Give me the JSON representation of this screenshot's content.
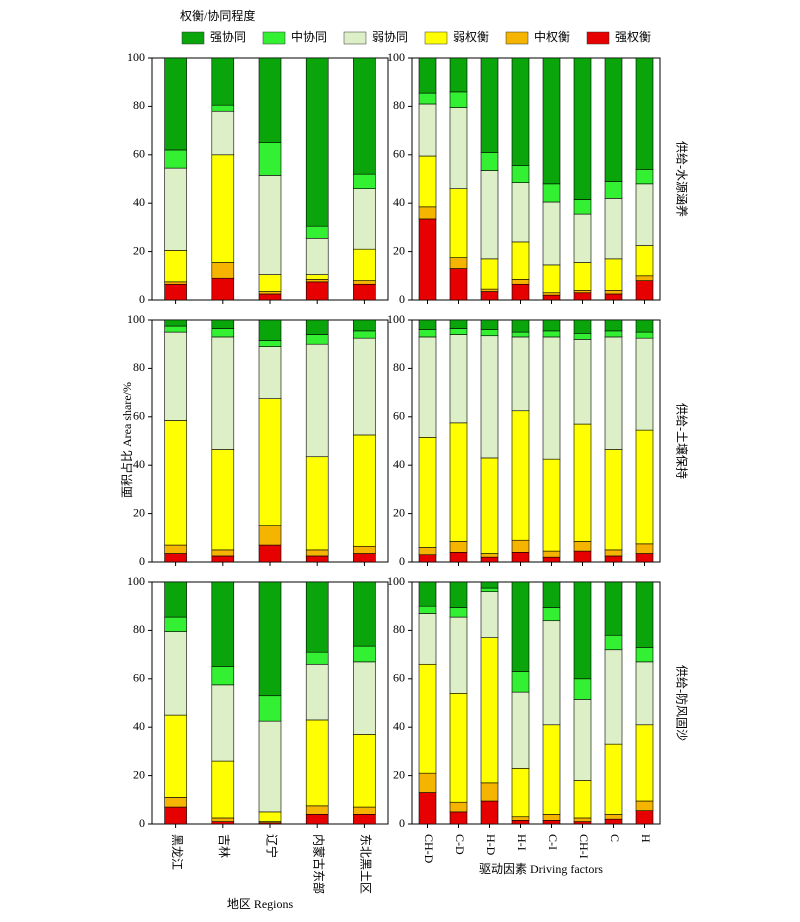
{
  "legend_title": "权衡/协同程度",
  "y_label": "面积占比 Area share/%",
  "chart_data": [
    {
      "type": "bar",
      "stacked": true,
      "ylim": [
        0,
        100
      ],
      "yticks": [
        0,
        20,
        40,
        60,
        80,
        100
      ],
      "series": [
        {
          "name": "强协同",
          "color": "#0aa50a",
          "values": [
            38,
            19.5,
            35,
            69.5,
            48
          ]
        },
        {
          "name": "中协同",
          "color": "#33f033",
          "values": [
            7.5,
            2.5,
            13.5,
            5,
            6
          ]
        },
        {
          "name": "弱协同",
          "color": "#dcefc6",
          "values": [
            34,
            18,
            41,
            15,
            25
          ]
        },
        {
          "name": "弱权衡",
          "color": "#ffff00",
          "values": [
            13,
            44.5,
            7,
            2,
            13
          ]
        },
        {
          "name": "中权衡",
          "color": "#f5b400",
          "values": [
            1,
            6.5,
            1,
            1,
            1.5
          ]
        },
        {
          "name": "强权衡",
          "color": "#e60000",
          "values": [
            6.5,
            9,
            2.5,
            7.5,
            6.5
          ]
        }
      ]
    },
    {
      "type": "bar",
      "stacked": true,
      "ylim": [
        0,
        100
      ],
      "yticks": [
        0,
        20,
        40,
        60,
        80,
        100
      ],
      "row_label": "供给-水源涵养",
      "series": [
        {
          "name": "强协同",
          "color": "#0aa50a",
          "values": [
            14.5,
            14,
            39,
            44.5,
            52,
            58.5,
            51,
            46
          ]
        },
        {
          "name": "中协同",
          "color": "#33f033",
          "values": [
            4.5,
            6.5,
            7.5,
            7,
            7.5,
            6,
            7,
            6
          ]
        },
        {
          "name": "弱协同",
          "color": "#dcefc6",
          "values": [
            21.5,
            33.5,
            36.5,
            24.5,
            26,
            20,
            25,
            25.5
          ]
        },
        {
          "name": "弱权衡",
          "color": "#ffff00",
          "values": [
            21,
            28.5,
            12.5,
            15.5,
            11.5,
            11.5,
            13,
            12.5
          ]
        },
        {
          "name": "中权衡",
          "color": "#f5b400",
          "values": [
            5,
            4.5,
            1,
            2,
            1,
            1,
            1.5,
            2
          ]
        },
        {
          "name": "强权衡",
          "color": "#e60000",
          "values": [
            33.5,
            13,
            3.5,
            6.5,
            2,
            3,
            2.5,
            8
          ]
        }
      ]
    },
    {
      "type": "bar",
      "stacked": true,
      "ylim": [
        0,
        100
      ],
      "yticks": [
        0,
        20,
        40,
        60,
        80,
        100
      ],
      "series": [
        {
          "name": "强协同",
          "color": "#0aa50a",
          "values": [
            2.5,
            3.5,
            8.5,
            6,
            4.5
          ]
        },
        {
          "name": "中协同",
          "color": "#33f033",
          "values": [
            2.5,
            3.5,
            2.5,
            4,
            3
          ]
        },
        {
          "name": "弱协同",
          "color": "#dcefc6",
          "values": [
            36.5,
            46.5,
            21.5,
            46.5,
            40
          ]
        },
        {
          "name": "弱权衡",
          "color": "#ffff00",
          "values": [
            51.5,
            41.5,
            52.5,
            38.5,
            46
          ]
        },
        {
          "name": "中权衡",
          "color": "#f5b400",
          "values": [
            3.5,
            2.5,
            8,
            2.5,
            3
          ]
        },
        {
          "name": "强权衡",
          "color": "#e60000",
          "values": [
            3.5,
            2.5,
            7,
            2.5,
            3.5
          ]
        }
      ]
    },
    {
      "type": "bar",
      "stacked": true,
      "ylim": [
        0,
        100
      ],
      "yticks": [
        0,
        20,
        40,
        60,
        80,
        100
      ],
      "row_label": "供给-土壤保持",
      "series": [
        {
          "name": "强协同",
          "color": "#0aa50a",
          "values": [
            4,
            3.5,
            4,
            5,
            4.5,
            5.5,
            4.5,
            5
          ]
        },
        {
          "name": "中协同",
          "color": "#33f033",
          "values": [
            3,
            2.5,
            2.5,
            2,
            2.5,
            2.5,
            2.5,
            2.5
          ]
        },
        {
          "name": "弱协同",
          "color": "#dcefc6",
          "values": [
            41.5,
            36.5,
            50.5,
            30.5,
            50.5,
            35,
            46.5,
            38
          ]
        },
        {
          "name": "弱权衡",
          "color": "#ffff00",
          "values": [
            45.5,
            49,
            39.5,
            53.5,
            38,
            48.5,
            41.5,
            47
          ]
        },
        {
          "name": "中权衡",
          "color": "#f5b400",
          "values": [
            3,
            4.5,
            1.5,
            5,
            2.5,
            4,
            2.5,
            4
          ]
        },
        {
          "name": "强权衡",
          "color": "#e60000",
          "values": [
            3,
            4,
            2,
            4,
            2,
            4.5,
            2.5,
            3.5
          ]
        }
      ]
    },
    {
      "type": "bar",
      "stacked": true,
      "ylim": [
        0,
        100
      ],
      "yticks": [
        0,
        20,
        40,
        60,
        80,
        100
      ],
      "categories": [
        "黑龙江",
        "吉林",
        "辽宁",
        "内蒙古东部",
        "东北黑土区"
      ],
      "x_label": "地区 Regions",
      "series": [
        {
          "name": "强协同",
          "color": "#0aa50a",
          "values": [
            14.5,
            35,
            47,
            29,
            26.5
          ]
        },
        {
          "name": "中协同",
          "color": "#33f033",
          "values": [
            6,
            7.5,
            10.5,
            5,
            6.5
          ]
        },
        {
          "name": "弱协同",
          "color": "#dcefc6",
          "values": [
            34.5,
            31.5,
            37.5,
            23,
            30
          ]
        },
        {
          "name": "弱权衡",
          "color": "#ffff00",
          "values": [
            34,
            23.5,
            4,
            35.5,
            30
          ]
        },
        {
          "name": "中权衡",
          "color": "#f5b400",
          "values": [
            4,
            1.5,
            0.5,
            3.5,
            3
          ]
        },
        {
          "name": "强权衡",
          "color": "#e60000",
          "values": [
            7,
            1,
            0.5,
            4,
            4
          ]
        }
      ]
    },
    {
      "type": "bar",
      "stacked": true,
      "ylim": [
        0,
        100
      ],
      "yticks": [
        0,
        20,
        40,
        60,
        80,
        100
      ],
      "row_label": "供给-防风固沙",
      "categories": [
        "CH-D",
        "C-D",
        "H-D",
        "H-I",
        "C-I",
        "CH-I",
        "C",
        "H"
      ],
      "x_label": "驱动因素 Driving factors",
      "series": [
        {
          "name": "强协同",
          "color": "#0aa50a",
          "values": [
            10,
            10.5,
            2.5,
            37,
            10.5,
            40,
            22,
            27
          ]
        },
        {
          "name": "中协同",
          "color": "#33f033",
          "values": [
            3,
            4,
            1.5,
            8.5,
            5.5,
            8.5,
            6,
            6
          ]
        },
        {
          "name": "弱协同",
          "color": "#dcefc6",
          "values": [
            21,
            31.5,
            19,
            31.5,
            43,
            33.5,
            39,
            26
          ]
        },
        {
          "name": "弱权衡",
          "color": "#ffff00",
          "values": [
            45,
            45,
            60,
            20,
            37,
            15.5,
            29,
            31.5
          ]
        },
        {
          "name": "中权衡",
          "color": "#f5b400",
          "values": [
            8,
            4,
            7.5,
            1.5,
            2.5,
            1.5,
            2,
            4
          ]
        },
        {
          "name": "强权衡",
          "color": "#e60000",
          "values": [
            13,
            5,
            9.5,
            1.5,
            1.5,
            1,
            2,
            5.5
          ]
        }
      ]
    }
  ]
}
